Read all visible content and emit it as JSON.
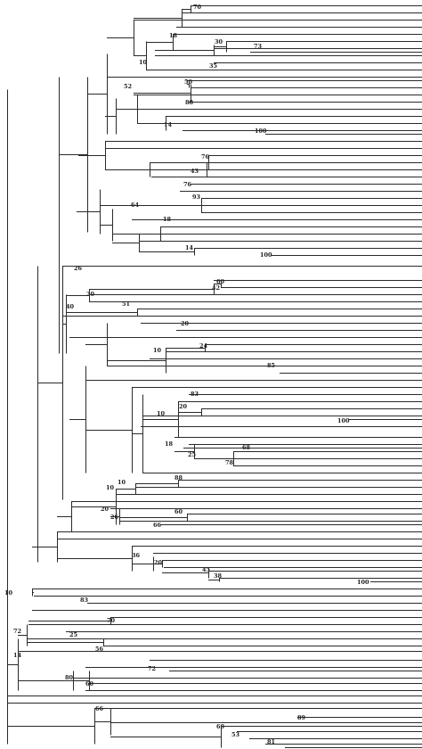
{
  "diagram": {
    "type": "phylogenetic-tree",
    "line_color": "#2a2a2a",
    "label_color": "#222222",
    "bootstrap_values": [
      "70",
      "18",
      "30",
      "73",
      "10",
      "35",
      "52",
      "50",
      "88",
      "14",
      "100",
      "76",
      "43",
      "76",
      "93",
      "64",
      "18",
      "14",
      "100",
      "26",
      "20",
      "60",
      "42",
      "51",
      "40",
      "20",
      "24",
      "10",
      "85",
      "83",
      "10",
      "20",
      "100",
      "18",
      "68",
      "25",
      "78",
      "10",
      "88",
      "10",
      "20",
      "60",
      "26",
      "66",
      "36",
      "20",
      "45",
      "38",
      "100",
      "10",
      "83",
      "70",
      "72",
      "25",
      "56",
      "14",
      "72",
      "80",
      "60",
      "66",
      "89",
      "60",
      "53",
      "81"
    ]
  }
}
